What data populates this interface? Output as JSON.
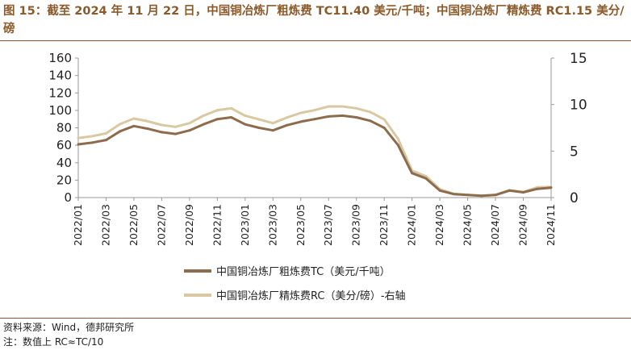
{
  "title": "图 15：截至 2024 年 11 月 22 日，中国铜冶炼厂粗炼费 TC11.40 美元/千吨；中国铜冶炼厂精炼费 RC1.15 美分/磅",
  "source": "资料来源：Wind，德邦研究所",
  "note": "注：数值上 RC≈TC/10",
  "colors": {
    "tc": "#8d6c4d",
    "rc": "#d9c9a2",
    "title": "#8a5a2b",
    "axis": "#999999"
  },
  "chart_data": {
    "type": "line",
    "x": [
      "2022/01",
      "2022/02",
      "2022/03",
      "2022/04",
      "2022/05",
      "2022/06",
      "2022/07",
      "2022/08",
      "2022/09",
      "2022/10",
      "2022/11",
      "2022/12",
      "2023/01",
      "2023/02",
      "2023/03",
      "2023/04",
      "2023/05",
      "2023/06",
      "2023/07",
      "2023/08",
      "2023/09",
      "2023/10",
      "2023/11",
      "2023/12",
      "2024/01",
      "2024/02",
      "2024/03",
      "2024/04",
      "2024/05",
      "2024/06",
      "2024/07",
      "2024/08",
      "2024/09",
      "2024/10",
      "2024/11"
    ],
    "x_ticks": [
      "2022/01",
      "2022/03",
      "2022/05",
      "2022/07",
      "2022/09",
      "2022/11",
      "2023/01",
      "2023/03",
      "2023/05",
      "2023/07",
      "2023/09",
      "2023/11",
      "2024/01",
      "2024/03",
      "2024/05",
      "2024/07",
      "2024/09",
      "2024/11"
    ],
    "series": [
      {
        "name": "中国铜冶炼厂粗炼费TC（美元/千吨）",
        "axis": "left",
        "values": [
          61,
          63,
          66,
          76,
          82,
          79,
          75,
          73,
          77,
          84,
          90,
          92,
          84,
          80,
          77,
          83,
          87,
          90,
          93,
          94,
          92,
          88,
          80,
          60,
          28,
          22,
          8,
          4,
          3,
          2,
          3,
          8,
          6,
          10,
          11.4
        ]
      },
      {
        "name": "中国铜冶炼厂精炼费RC（美分/磅）-右轴",
        "axis": "right",
        "values": [
          6.4,
          6.6,
          6.9,
          7.9,
          8.5,
          8.2,
          7.8,
          7.6,
          8.0,
          8.8,
          9.4,
          9.6,
          8.8,
          8.4,
          8.0,
          8.6,
          9.1,
          9.4,
          9.8,
          9.8,
          9.6,
          9.2,
          8.4,
          6.3,
          2.9,
          2.3,
          0.9,
          0.4,
          0.3,
          0.2,
          0.3,
          0.8,
          0.6,
          1.1,
          1.15
        ]
      }
    ],
    "y_left": {
      "min": 0,
      "max": 160,
      "ticks": [
        0,
        20,
        40,
        60,
        80,
        100,
        120,
        140,
        160
      ]
    },
    "y_right": {
      "min": 0,
      "max": 15,
      "ticks": [
        0,
        5,
        10,
        15
      ]
    },
    "grid": false,
    "legend_position": "bottom"
  }
}
